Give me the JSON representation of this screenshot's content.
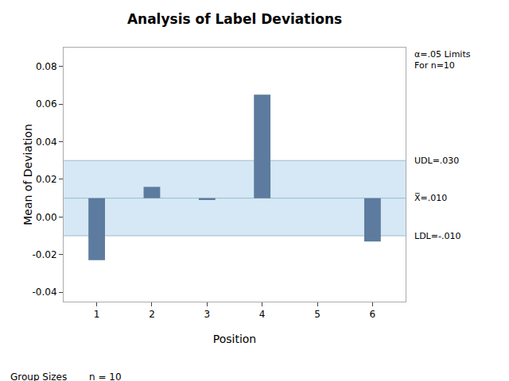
{
  "chart_data": {
    "type": "bar",
    "title": "Analysis of Label Deviations",
    "xlabel": "Position",
    "ylabel": "Mean of Deviation",
    "x": [
      1,
      2,
      3,
      4,
      5,
      6
    ],
    "values": [
      -0.023,
      0.016,
      0.009,
      0.065,
      0.01,
      -0.013
    ],
    "base": 0.01,
    "color": "#5C7B9E",
    "xlim": [
      0.4,
      6.6
    ],
    "xticks": [
      1,
      2,
      3,
      4,
      5,
      6
    ],
    "ylim": [
      -0.045,
      0.09
    ],
    "yticks": [
      -0.04,
      -0.02,
      {
        "value": 0,
        "label": "0.00"
      },
      0.02,
      0.04,
      0.06,
      0.08
    ],
    "grid": false,
    "band": {
      "from": -0.01,
      "to": 0.03,
      "color": "#D6E8F5"
    },
    "reference_lines": [
      {
        "value": 0.03,
        "label": "UDL=.030",
        "color": "#9BBCCC"
      },
      {
        "value": 0.01,
        "label": "X̅=.010",
        "color": "#9BBCCC"
      },
      {
        "value": -0.01,
        "label": "LDL=-.010",
        "color": "#9BBCCC"
      }
    ],
    "annotations": [
      "α=.05 Limits\nFor n=10",
      "Group Sizes",
      "n = 10"
    ]
  }
}
